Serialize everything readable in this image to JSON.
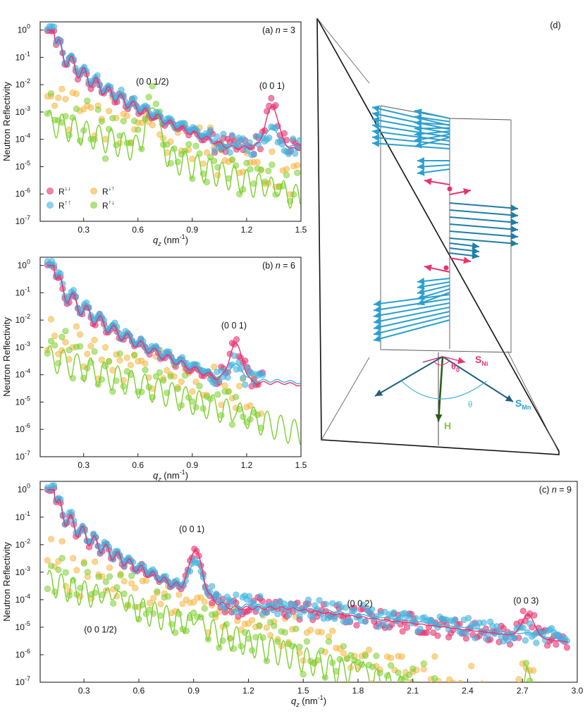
{
  "colors": {
    "dd": "#e8336f",
    "uu": "#3fb4e0",
    "du": "#f5b53c",
    "ud": "#7ccf2c",
    "spin_ni": "#e8336f",
    "spin_mn": "#2a9fd0",
    "spin_mn_dark": "#1d7ea8",
    "field": "#2a5a14"
  },
  "chart_data": [
    {
      "id": "a",
      "type": "scatter",
      "panel_label": "(a) n = 3",
      "panel_label_prefix": "(a) ",
      "panel_label_var": "n",
      "panel_label_suffix": " = 3",
      "xlabel_var": "q",
      "xlabel_sub": "z",
      "xlabel_unit": " (nm",
      "xlabel_exp": "-1",
      "xlabel_close": ")",
      "ylabel": "Neutron Reflectivity",
      "xlim": [
        0.06,
        1.5
      ],
      "ylim_log10": [
        -7,
        0.3
      ],
      "y_scale": "log",
      "xticks": [
        "0.3",
        "0.6",
        "0.9",
        "1.2",
        "1.5"
      ],
      "ytick_exponents": [
        "0",
        "-1",
        "-2",
        "-3",
        "-4",
        "-5",
        "-6",
        "-7"
      ],
      "annotations": [
        {
          "text": "(0 0 1/2)",
          "x": 0.68,
          "y_log10": -2.0
        },
        {
          "text": "(0 0 1)",
          "x": 1.34,
          "y_log10": -2.15
        }
      ],
      "legend": [
        {
          "key": "dd",
          "base": "R",
          "sup": "↓↓"
        },
        {
          "key": "du",
          "base": "R",
          "sup": "↓↑"
        },
        {
          "key": "uu",
          "base": "R",
          "sup": "↑↑"
        },
        {
          "key": "ud",
          "base": "R",
          "sup": "↑↓"
        }
      ],
      "peaks": [
        {
          "x": 0.68,
          "dd": -3.3,
          "uu": -3.2,
          "ud": -2.45,
          "du": -3.4,
          "w": 0.05
        },
        {
          "x": 1.34,
          "dd": -2.8,
          "uu": -3.6,
          "ud": -5.6,
          "du": -5.4,
          "w": 0.05
        }
      ],
      "fringe_period": 0.068,
      "q_end": 1.5
    },
    {
      "id": "b",
      "type": "scatter",
      "panel_label": "(b) n = 6",
      "panel_label_prefix": "(b) ",
      "panel_label_var": "n",
      "panel_label_suffix": " = 6",
      "xlabel_var": "q",
      "xlabel_sub": "z",
      "xlabel_unit": " (nm",
      "xlabel_exp": "-1",
      "xlabel_close": ")",
      "ylabel": "Neutron Reflectivity",
      "xlim": [
        0.06,
        1.5
      ],
      "ylim_log10": [
        -7,
        0.3
      ],
      "y_scale": "log",
      "xticks": [
        "0.3",
        "0.6",
        "0.9",
        "1.2",
        "1.5"
      ],
      "ytick_exponents": [
        "0",
        "-1",
        "-2",
        "-3",
        "-4",
        "-5",
        "-6",
        "-7"
      ],
      "annotations": [
        {
          "text": "(0 0 1)",
          "x": 1.13,
          "y_log10": -2.3
        }
      ],
      "peaks": [
        {
          "x": 1.14,
          "dd": -2.85,
          "uu": -3.6,
          "ud": -5.3,
          "du": -5.1,
          "w": 0.05
        }
      ],
      "fringe_period": 0.075,
      "q_end": 1.29,
      "fit_extends_to": 1.5
    },
    {
      "id": "c",
      "type": "scatter",
      "panel_label": "(c) n = 9",
      "panel_label_prefix": "(c) ",
      "panel_label_var": "n",
      "panel_label_suffix": " = 9",
      "xlabel_var": "q",
      "xlabel_sub": "z",
      "xlabel_unit": " (nm",
      "xlabel_exp": "-1",
      "xlabel_close": ")",
      "ylabel": "Neutron Reflectivity",
      "xlim": [
        0.06,
        3.0
      ],
      "ylim_log10": [
        -7,
        0.3
      ],
      "y_scale": "log",
      "xticks": [
        "0.3",
        "0.6",
        "0.9",
        "1.2",
        "1.5",
        "1.8",
        "2.1",
        "2.4",
        "2.7",
        "3.0"
      ],
      "ytick_exponents": [
        "0",
        "-1",
        "-2",
        "-3",
        "-4",
        "-5",
        "-6",
        "-7"
      ],
      "annotations": [
        {
          "text": "(0 0 1)",
          "x": 0.89,
          "y_log10": -1.55
        },
        {
          "text": "(0 0 1/2)",
          "x": 0.39,
          "y_log10": -5.2
        },
        {
          "text": "(0 0 2)",
          "x": 1.81,
          "y_log10": -4.25
        },
        {
          "text": "(0 0 3)",
          "x": 2.72,
          "y_log10": -4.15
        }
      ],
      "peaks": [
        {
          "x": 0.91,
          "dd": -2.2,
          "uu": -2.6,
          "ud": -4.5,
          "du": -4.4,
          "w": 0.05
        },
        {
          "x": 0.45,
          "dd": -3.4,
          "uu": -3.3,
          "ud": -3.6,
          "du": -3.5,
          "w": 0.08
        },
        {
          "x": 1.81,
          "dd": -5.5,
          "uu": -4.6,
          "ud": -6.2,
          "du": -6.0,
          "w": 0.05
        },
        {
          "x": 2.73,
          "dd": -4.55,
          "uu": -5.2,
          "ud": -6.4,
          "du": -6.3,
          "w": 0.05
        }
      ],
      "fringe_period": 0.064,
      "q_end": 2.95
    }
  ],
  "schematic": {
    "panel_label": "(d)",
    "labels": {
      "s_ni_base": "S",
      "s_ni_sub": "Ni",
      "s_mn_base": "S",
      "s_mn_sub": "Mn",
      "field": "H",
      "theta0_base": "θ",
      "theta0_sub": "0",
      "theta": "θ"
    },
    "spin_blocks": [
      {
        "name": "top-mn",
        "count": 7,
        "direction": "left"
      },
      {
        "name": "top-mn-2",
        "count": 3,
        "direction": "left"
      },
      {
        "name": "ni-upper",
        "count": 2,
        "direction": "ni"
      },
      {
        "name": "mid-mn",
        "count": 6,
        "direction": "right"
      },
      {
        "name": "ni-lower",
        "count": 2,
        "direction": "ni"
      },
      {
        "name": "low-mn",
        "count": 10,
        "direction": "left"
      }
    ]
  }
}
